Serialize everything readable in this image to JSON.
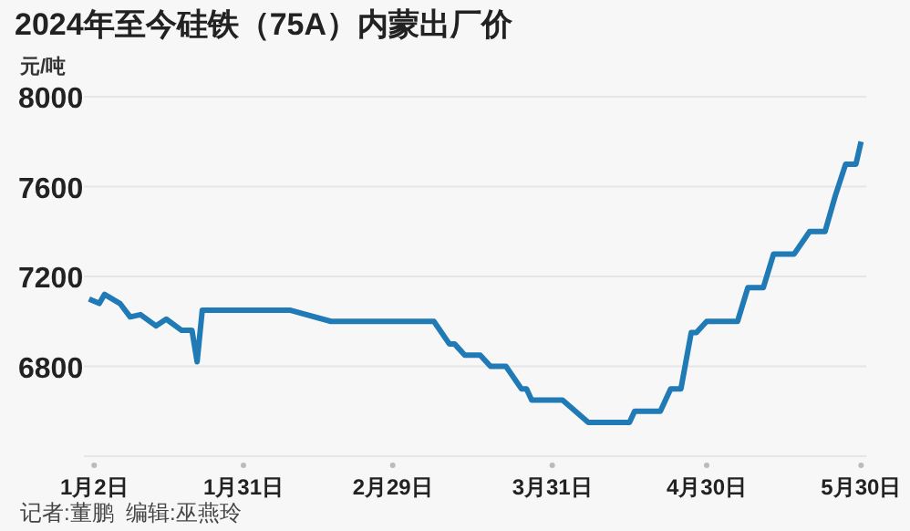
{
  "chart_data": {
    "type": "line",
    "title": "2024年至今硅铁（75A）内蒙出厂价",
    "ylabel": "元/吨",
    "annotations": [
      "记者:董鹏  编辑:巫燕玲"
    ],
    "x": [
      "2024-01-01",
      "2024-01-03",
      "2024-01-04",
      "2024-01-07",
      "2024-01-09",
      "2024-01-11",
      "2024-01-14",
      "2024-01-16",
      "2024-01-19",
      "2024-01-21",
      "2024-01-22",
      "2024-01-23",
      "2024-02-09",
      "2024-02-17",
      "2024-03-08",
      "2024-03-11",
      "2024-03-12",
      "2024-03-14",
      "2024-03-17",
      "2024-03-19",
      "2024-03-22",
      "2024-03-25",
      "2024-03-26",
      "2024-03-27",
      "2024-04-02",
      "2024-04-07",
      "2024-04-15",
      "2024-04-16",
      "2024-04-21",
      "2024-04-23",
      "2024-04-25",
      "2024-04-27",
      "2024-04-28",
      "2024-04-30",
      "2024-05-06",
      "2024-05-08",
      "2024-05-11",
      "2024-05-13",
      "2024-05-17",
      "2024-05-20",
      "2024-05-23",
      "2024-05-25",
      "2024-05-27",
      "2024-05-29",
      "2024-05-30"
    ],
    "series": [
      {
        "color": "#1f7ab5",
        "values": [
          7100,
          7080,
          7120,
          7080,
          7020,
          7030,
          6980,
          7010,
          6960,
          6960,
          6820,
          7050,
          7050,
          7000,
          7000,
          6900,
          6900,
          6850,
          6850,
          6800,
          6800,
          6700,
          6700,
          6650,
          6650,
          6550,
          6550,
          6600,
          6600,
          6700,
          6700,
          6950,
          6950,
          7000,
          7000,
          7150,
          7150,
          7300,
          7300,
          7400,
          7400,
          7560,
          7700,
          7700,
          7800
        ]
      }
    ],
    "xlim": [
      "2023-12-31",
      "2024-05-31"
    ],
    "xticks": [
      {
        "value": "2024-01-02",
        "label": "1月2日"
      },
      {
        "value": "2024-01-31",
        "label": "1月31日"
      },
      {
        "value": "2024-02-29",
        "label": "2月29日"
      },
      {
        "value": "2024-03-31",
        "label": "3月31日"
      },
      {
        "value": "2024-04-30",
        "label": "4月30日"
      },
      {
        "value": "2024-05-30",
        "label": "5月30日"
      }
    ],
    "ylim": [
      6400,
      8000
    ],
    "yticks": [
      6800,
      7200,
      7600,
      8000
    ],
    "grid": "y",
    "legend": false,
    "marker": "none",
    "line_style": "solid"
  }
}
